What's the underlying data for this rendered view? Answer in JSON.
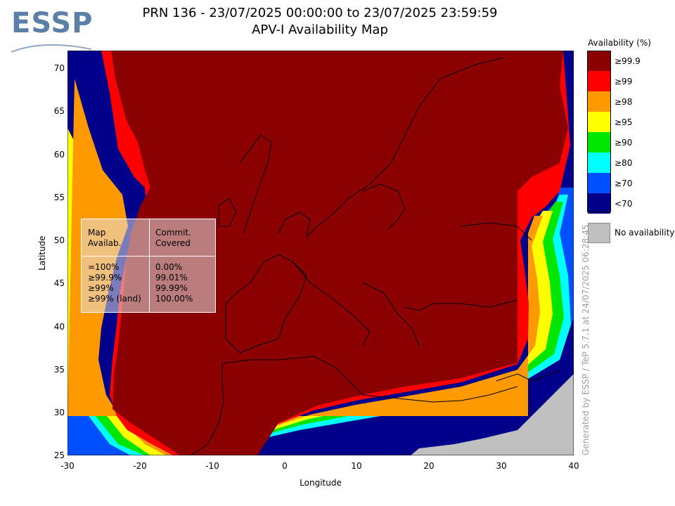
{
  "header": {
    "logo_text": "ESSP",
    "title_line1": "PRN 136 - 23/07/2025 00:00:00 to 23/07/2025 23:59:59",
    "title_line2": "APV-I Availability Map"
  },
  "axes": {
    "xlabel": "Longitude",
    "ylabel": "Latitude",
    "xticks": [
      "-30",
      "-20",
      "-10",
      "0",
      "10",
      "20",
      "30",
      "40"
    ],
    "yticks": [
      "70",
      "65",
      "60",
      "55",
      "50",
      "45",
      "40",
      "35",
      "30",
      "25"
    ],
    "xlim": [
      -30,
      40
    ],
    "ylim": [
      25,
      72
    ]
  },
  "legend": {
    "title": "Availability (%)",
    "items": [
      {
        "label": "≥99.9",
        "color": "#8b0000"
      },
      {
        "label": "≥99",
        "color": "#ff0000"
      },
      {
        "label": "≥98",
        "color": "#ff9900"
      },
      {
        "label": "≥95",
        "color": "#ffff00"
      },
      {
        "label": "≥90",
        "color": "#00e600"
      },
      {
        "label": "≥80",
        "color": "#00ffff"
      },
      {
        "label": "≥70",
        "color": "#0050ff"
      },
      {
        "label": "<70",
        "color": "#00008b"
      }
    ],
    "no_availability": {
      "label": "No availability",
      "color": "#c0c0c0"
    }
  },
  "stats_table": {
    "col1_header": [
      "Map",
      "Availab."
    ],
    "col2_header": [
      "Commit.",
      "Covered"
    ],
    "rows": [
      {
        "avail": "=100%",
        "covered": "0.00%"
      },
      {
        "avail": "≥99.9%",
        "covered": "99.01%"
      },
      {
        "avail": "≥99%",
        "covered": "99.99%"
      },
      {
        "avail": "≥99% (land)",
        "covered": "100.00%"
      }
    ]
  },
  "credit": "Generated by ESSP / TeP 5.7.1 at 24/07/2025 06:28:45"
}
